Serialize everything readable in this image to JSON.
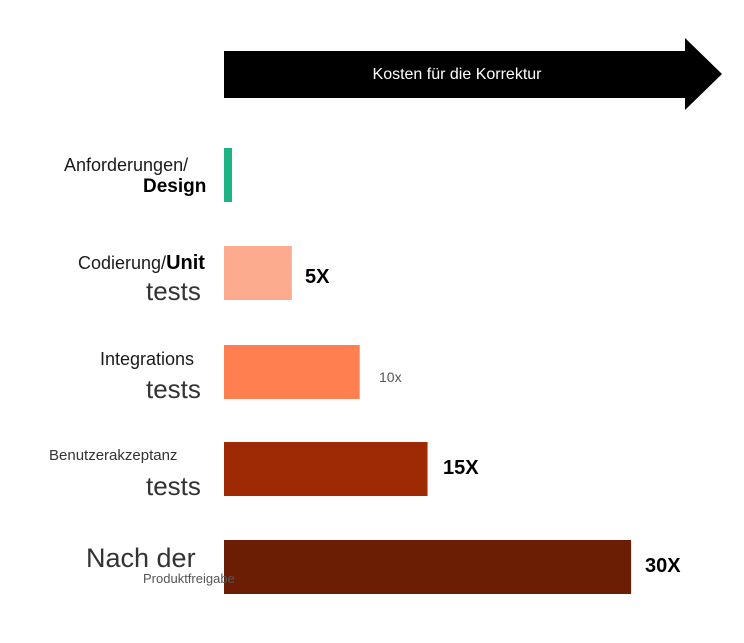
{
  "chart_data": {
    "type": "bar",
    "orientation": "horizontal",
    "header_arrow_label": "Kosten für die Korrektur",
    "categories": [
      {
        "line1_a": "Anforderungen/",
        "line1_b": "",
        "line2": "Design"
      },
      {
        "line1_a": "Codierung/",
        "line1_b": "Unit",
        "line2": "tests"
      },
      {
        "line1_a": "Integrations",
        "line1_b": "",
        "line2": "tests"
      },
      {
        "line1_a": "Benutzerakzeptanz",
        "line1_b": "",
        "line2": "tests"
      },
      {
        "line1_a": "Nach der",
        "line1_b": "",
        "line2": "Produktfreigabe"
      }
    ],
    "values": [
      1,
      5,
      10,
      15,
      30
    ],
    "value_labels": [
      "",
      "5X",
      "10x",
      "15X",
      "30X"
    ],
    "colors": [
      "#1db385",
      "#fcab8e",
      "#ff7f50",
      "#9e2a05",
      "#6b1e04"
    ],
    "xlim": [
      0,
      30
    ],
    "grid": false,
    "legend": "none"
  }
}
